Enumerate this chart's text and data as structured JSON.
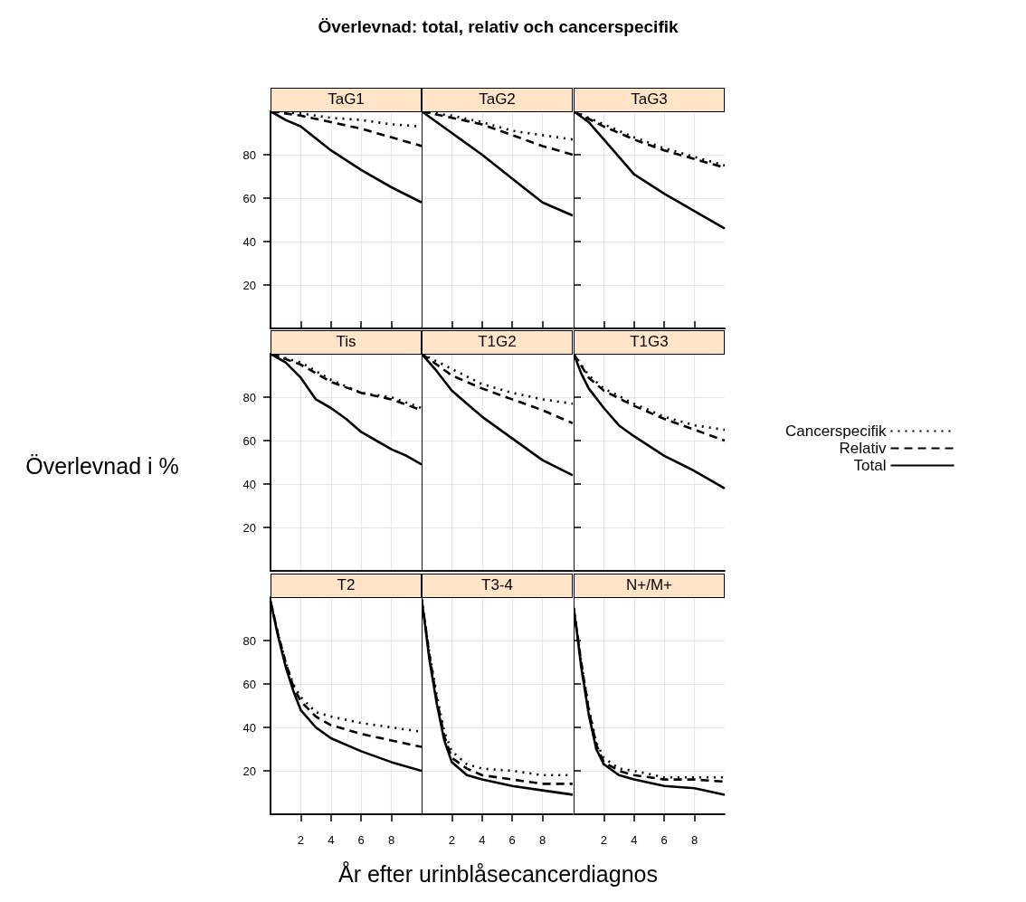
{
  "chart_data": [
    {
      "type": "line",
      "title": "TaG1",
      "xlim": [
        0,
        10
      ],
      "xticks": [
        2,
        4,
        6,
        8
      ],
      "ylim": [
        0,
        100
      ],
      "yticks": [
        20,
        40,
        60,
        80
      ],
      "grid": true,
      "marker": "none",
      "tick_labels": "y",
      "series": [
        {
          "color": "#000000",
          "line_style": "dotted",
          "x": [
            0,
            2,
            4,
            6,
            8,
            10
          ],
          "values": [
            100,
            99,
            97,
            96,
            94,
            93
          ]
        },
        {
          "color": "#000000",
          "line_style": "dashed",
          "x": [
            0,
            2,
            4,
            6,
            8,
            10
          ],
          "values": [
            100,
            98,
            95,
            92,
            88,
            84
          ]
        },
        {
          "color": "#000000",
          "line_style": "solid",
          "x": [
            0,
            1,
            2,
            4,
            6,
            8,
            10
          ],
          "values": [
            100,
            96,
            93,
            82,
            73,
            65,
            58
          ]
        }
      ]
    },
    {
      "type": "line",
      "title": "TaG2",
      "annotations": [
        "Överlevnad: total, relativ och cancerspecifik"
      ],
      "xlim": [
        0,
        10
      ],
      "xticks": [
        2,
        4,
        6,
        8
      ],
      "ylim": [
        0,
        100
      ],
      "yticks": [
        20,
        40,
        60,
        80
      ],
      "grid": true,
      "marker": "none",
      "tick_labels": false,
      "series": [
        {
          "color": "#000000",
          "line_style": "dotted",
          "x": [
            0,
            2,
            4,
            6,
            8,
            10
          ],
          "values": [
            100,
            98,
            95,
            91,
            89,
            87
          ]
        },
        {
          "color": "#000000",
          "line_style": "dashed",
          "x": [
            0,
            2,
            4,
            6,
            8,
            10
          ],
          "values": [
            100,
            97,
            94,
            89,
            84,
            80
          ]
        },
        {
          "color": "#000000",
          "line_style": "solid",
          "x": [
            0,
            2,
            4,
            6,
            8,
            10
          ],
          "values": [
            100,
            90,
            80,
            69,
            58,
            52
          ]
        }
      ]
    },
    {
      "type": "line",
      "title": "TaG3",
      "xlim": [
        0,
        10
      ],
      "xticks": [
        2,
        4,
        6,
        8
      ],
      "ylim": [
        0,
        100
      ],
      "yticks": [
        20,
        40,
        60,
        80
      ],
      "grid": true,
      "marker": "none",
      "tick_labels": false,
      "series": [
        {
          "color": "#000000",
          "line_style": "dotted",
          "x": [
            0,
            2,
            4,
            6,
            8,
            10
          ],
          "values": [
            100,
            94,
            88,
            83,
            79,
            75
          ]
        },
        {
          "color": "#000000",
          "line_style": "dashed",
          "x": [
            0,
            2,
            4,
            6,
            8,
            10
          ],
          "values": [
            100,
            93,
            87,
            82,
            78,
            74
          ]
        },
        {
          "color": "#000000",
          "line_style": "solid",
          "x": [
            0,
            1,
            2,
            3,
            4,
            6,
            8,
            10
          ],
          "values": [
            100,
            95,
            87,
            79,
            71,
            62,
            54,
            46
          ]
        }
      ]
    },
    {
      "type": "line",
      "title": "Tis",
      "ylabel": "Överlevnad i %",
      "xlim": [
        0,
        10
      ],
      "xticks": [
        2,
        4,
        6,
        8
      ],
      "ylim": [
        0,
        100
      ],
      "yticks": [
        20,
        40,
        60,
        80
      ],
      "grid": true,
      "marker": "none",
      "tick_labels": "y",
      "series": [
        {
          "color": "#000000",
          "line_style": "dotted",
          "x": [
            0,
            2,
            4,
            6,
            8,
            10
          ],
          "values": [
            100,
            96,
            88,
            82,
            80,
            75
          ]
        },
        {
          "color": "#000000",
          "line_style": "dashed",
          "x": [
            0,
            2,
            4,
            6,
            8,
            10
          ],
          "values": [
            100,
            95,
            87,
            82,
            79,
            74
          ]
        },
        {
          "color": "#000000",
          "line_style": "solid",
          "x": [
            0,
            1,
            2,
            3,
            4,
            5,
            6,
            7,
            8,
            9,
            10
          ],
          "values": [
            100,
            96,
            89,
            79,
            75,
            70,
            64,
            60,
            56,
            53,
            49
          ]
        }
      ]
    },
    {
      "type": "line",
      "title": "T1G2",
      "xlim": [
        0,
        10
      ],
      "xticks": [
        2,
        4,
        6,
        8
      ],
      "ylim": [
        0,
        100
      ],
      "yticks": [
        20,
        40,
        60,
        80
      ],
      "grid": true,
      "marker": "none",
      "tick_labels": false,
      "series": [
        {
          "color": "#000000",
          "line_style": "dotted",
          "x": [
            0,
            2,
            4,
            6,
            8,
            10
          ],
          "values": [
            100,
            93,
            86,
            82,
            79,
            77
          ]
        },
        {
          "color": "#000000",
          "line_style": "dashed",
          "x": [
            0,
            2,
            4,
            6,
            8,
            10
          ],
          "values": [
            100,
            90,
            84,
            79,
            74,
            68
          ]
        },
        {
          "color": "#000000",
          "line_style": "solid",
          "x": [
            0,
            1,
            2,
            3,
            4,
            6,
            8,
            10
          ],
          "values": [
            100,
            92,
            83,
            77,
            71,
            61,
            51,
            44
          ]
        }
      ]
    },
    {
      "type": "line",
      "title": "T1G3",
      "legend": "right",
      "xlim": [
        0,
        10
      ],
      "xticks": [
        2,
        4,
        6,
        8
      ],
      "ylim": [
        0,
        100
      ],
      "yticks": [
        20,
        40,
        60,
        80
      ],
      "grid": true,
      "marker": "none",
      "tick_labels": false,
      "series": [
        {
          "name": "Cancerspecifik",
          "color": "#000000",
          "line_style": "dotted",
          "x": [
            0,
            1,
            2,
            4,
            6,
            8,
            10
          ],
          "values": [
            100,
            90,
            84,
            77,
            71,
            67,
            65
          ]
        },
        {
          "name": "Relativ",
          "color": "#000000",
          "line_style": "dashed",
          "x": [
            0,
            1,
            2,
            4,
            6,
            8,
            10
          ],
          "values": [
            100,
            89,
            83,
            76,
            70,
            65,
            60
          ]
        },
        {
          "name": "Total",
          "color": "#000000",
          "line_style": "solid",
          "x": [
            0,
            0.5,
            1,
            2,
            3,
            4,
            6,
            8,
            10
          ],
          "values": [
            100,
            91,
            84,
            75,
            67,
            62,
            53,
            46,
            38
          ]
        }
      ]
    },
    {
      "type": "line",
      "title": "T2",
      "xlim": [
        0,
        10
      ],
      "xticks": [
        2,
        4,
        6,
        8
      ],
      "ylim": [
        0,
        100
      ],
      "yticks": [
        20,
        40,
        60,
        80
      ],
      "grid": true,
      "marker": "none",
      "series": [
        {
          "color": "#000000",
          "line_style": "dotted",
          "x": [
            0,
            0.5,
            1,
            1.5,
            2,
            3,
            4,
            6,
            8,
            10
          ],
          "values": [
            98,
            83,
            70,
            60,
            54,
            47,
            45,
            42,
            40,
            38
          ]
        },
        {
          "color": "#000000",
          "line_style": "dashed",
          "x": [
            0,
            0.5,
            1,
            1.5,
            2,
            3,
            4,
            6,
            8,
            10
          ],
          "values": [
            98,
            83,
            70,
            59,
            52,
            45,
            41,
            37,
            34,
            31
          ]
        },
        {
          "color": "#000000",
          "line_style": "solid",
          "x": [
            0,
            0.5,
            1,
            1.5,
            2,
            3,
            4,
            6,
            8,
            10
          ],
          "values": [
            98,
            82,
            68,
            57,
            48,
            40,
            35,
            29,
            24,
            20
          ]
        }
      ]
    },
    {
      "type": "line",
      "title": "T3-4",
      "xlabel": "År efter urinblåsecancerdiagnos",
      "xlim": [
        0,
        10
      ],
      "xticks": [
        2,
        4,
        6,
        8
      ],
      "ylim": [
        0,
        100
      ],
      "yticks": [
        20,
        40,
        60,
        80
      ],
      "grid": true,
      "marker": "none",
      "tick_labels": "x",
      "series": [
        {
          "color": "#000000",
          "line_style": "dotted",
          "x": [
            0,
            0.25,
            0.5,
            1,
            1.5,
            2,
            3,
            4,
            6,
            8,
            10
          ],
          "values": [
            99,
            87,
            75,
            55,
            38,
            29,
            23,
            21,
            20,
            18,
            18
          ]
        },
        {
          "color": "#000000",
          "line_style": "dashed",
          "x": [
            0,
            0.25,
            0.5,
            1,
            1.5,
            2,
            3,
            4,
            6,
            8,
            10
          ],
          "values": [
            99,
            87,
            74,
            53,
            36,
            26,
            21,
            18,
            16,
            14,
            14
          ]
        },
        {
          "color": "#000000",
          "line_style": "solid",
          "x": [
            0,
            0.25,
            0.5,
            1,
            1.5,
            2,
            3,
            4,
            6,
            8,
            10
          ],
          "values": [
            99,
            86,
            72,
            51,
            34,
            24,
            18,
            16,
            13,
            11,
            9
          ]
        }
      ]
    },
    {
      "type": "line",
      "title": "N+/M+",
      "xlim": [
        0,
        10
      ],
      "xticks": [
        2,
        4,
        6,
        8
      ],
      "ylim": [
        0,
        100
      ],
      "yticks": [
        20,
        40,
        60,
        80
      ],
      "grid": true,
      "marker": "none",
      "tick_labels": "x",
      "series": [
        {
          "color": "#000000",
          "line_style": "dotted",
          "x": [
            0,
            0.25,
            0.5,
            1,
            1.5,
            2,
            3,
            4,
            6,
            8,
            10
          ],
          "values": [
            95,
            83,
            70,
            49,
            33,
            26,
            21,
            20,
            17,
            17,
            17
          ]
        },
        {
          "color": "#000000",
          "line_style": "dashed",
          "x": [
            0,
            0.25,
            0.5,
            1,
            1.5,
            2,
            3,
            4,
            6,
            8,
            10
          ],
          "values": [
            95,
            83,
            70,
            48,
            32,
            24,
            20,
            18,
            16,
            16,
            15
          ]
        },
        {
          "color": "#000000",
          "line_style": "solid",
          "x": [
            0,
            0.25,
            0.5,
            1,
            1.5,
            2,
            3,
            4,
            6,
            8,
            10
          ],
          "values": [
            95,
            82,
            68,
            46,
            30,
            23,
            18,
            16,
            13,
            12,
            9
          ]
        }
      ]
    }
  ]
}
